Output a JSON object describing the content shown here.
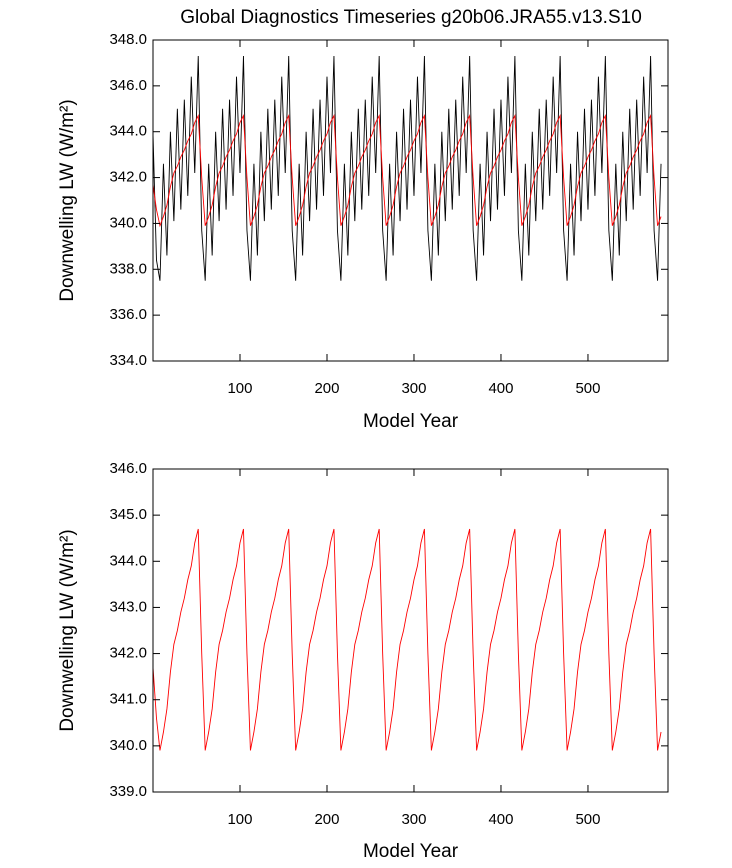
{
  "chart_data": [
    {
      "type": "line",
      "title": "Global Diagnostics Timeseries g20b06.JRA55.v13.S10",
      "x_label": "Model Year",
      "y_label": "Downwelling LW (W/m²)",
      "x": [
        0,
        4,
        8,
        12,
        16,
        20,
        24,
        28,
        32,
        36,
        40,
        44,
        48,
        52,
        56,
        60,
        64,
        68,
        72,
        76,
        80,
        84,
        88,
        92,
        96,
        100,
        104,
        108,
        112,
        116,
        120,
        124,
        128,
        132,
        136,
        140,
        144,
        148,
        152,
        156,
        160,
        164,
        168,
        172,
        176,
        180,
        184,
        188,
        192,
        196,
        200,
        204,
        208,
        212,
        216,
        220,
        224,
        228,
        232,
        236,
        240,
        244,
        248,
        252,
        256,
        260,
        264,
        268,
        272,
        276,
        280,
        284,
        288,
        292,
        296,
        300,
        304,
        308,
        312,
        316,
        320,
        324,
        328,
        332,
        336,
        340,
        344,
        348,
        352,
        356,
        360,
        364,
        368,
        372,
        376,
        380,
        384,
        388,
        392,
        396,
        400,
        404,
        408,
        412,
        416,
        420,
        424,
        428,
        432,
        436,
        440,
        444,
        448,
        452,
        456,
        460,
        464,
        468,
        472,
        476,
        480,
        484,
        488,
        492,
        496,
        500,
        504,
        508,
        512,
        516,
        520,
        524,
        528,
        532,
        536,
        540,
        544,
        548,
        552,
        556,
        560,
        564,
        568,
        572,
        576,
        580,
        584
      ],
      "series": [
        {
          "color": "#000000",
          "values": [
            343.9,
            338.4,
            337.5,
            342.6,
            338.6,
            344.0,
            340.1,
            345.0,
            340.6,
            345.4,
            341.2,
            346.4,
            342.2,
            347.3,
            339.7,
            337.5,
            342.6,
            338.6,
            344.0,
            340.1,
            345.0,
            340.6,
            345.4,
            341.2,
            346.4,
            342.2,
            347.3,
            339.7,
            337.5,
            342.6,
            338.6,
            344.0,
            340.1,
            345.0,
            340.6,
            345.4,
            341.2,
            346.4,
            342.2,
            347.3,
            339.7,
            337.5,
            342.6,
            338.6,
            344.0,
            340.1,
            345.0,
            340.6,
            345.4,
            341.2,
            346.4,
            342.2,
            347.3,
            339.7,
            337.5,
            342.6,
            338.6,
            344.0,
            340.1,
            345.0,
            340.6,
            345.4,
            341.2,
            346.4,
            342.2,
            347.3,
            339.7,
            337.5,
            342.6,
            338.6,
            344.0,
            340.1,
            345.0,
            340.6,
            345.4,
            341.2,
            346.4,
            342.2,
            347.3,
            339.7,
            337.5,
            342.6,
            338.6,
            344.0,
            340.1,
            345.0,
            340.6,
            345.4,
            341.2,
            346.4,
            342.2,
            347.3,
            339.7,
            337.5,
            342.6,
            338.6,
            344.0,
            340.1,
            345.0,
            340.6,
            345.4,
            341.2,
            346.4,
            342.2,
            347.3,
            339.7,
            337.5,
            342.6,
            338.6,
            344.0,
            340.1,
            345.0,
            340.6,
            345.4,
            341.2,
            346.4,
            342.2,
            347.3,
            339.7,
            337.5,
            342.6,
            338.6,
            344.0,
            340.1,
            345.0,
            340.6,
            345.4,
            341.2,
            346.4,
            342.2,
            347.3,
            339.7,
            337.5,
            342.6,
            338.6,
            344.0,
            340.1,
            345.0,
            340.6,
            345.4,
            341.2,
            346.4,
            342.2,
            347.3,
            339.7,
            337.5,
            342.6
          ]
        },
        {
          "color": "#ff0000",
          "values": [
            341.7,
            340.6,
            339.9,
            340.3,
            340.8,
            341.6,
            342.2,
            342.5,
            342.9,
            343.2,
            343.6,
            343.9,
            344.4,
            344.7,
            342.0,
            339.9,
            340.3,
            340.8,
            341.6,
            342.2,
            342.5,
            342.9,
            343.2,
            343.6,
            343.9,
            344.4,
            344.7,
            342.0,
            339.9,
            340.3,
            340.8,
            341.6,
            342.2,
            342.5,
            342.9,
            343.2,
            343.6,
            343.9,
            344.4,
            344.7,
            342.0,
            339.9,
            340.3,
            340.8,
            341.6,
            342.2,
            342.5,
            342.9,
            343.2,
            343.6,
            343.9,
            344.4,
            344.7,
            342.0,
            339.9,
            340.3,
            340.8,
            341.6,
            342.2,
            342.5,
            342.9,
            343.2,
            343.6,
            343.9,
            344.4,
            344.7,
            342.0,
            339.9,
            340.3,
            340.8,
            341.6,
            342.2,
            342.5,
            342.9,
            343.2,
            343.6,
            343.9,
            344.4,
            344.7,
            342.0,
            339.9,
            340.3,
            340.8,
            341.6,
            342.2,
            342.5,
            342.9,
            343.2,
            343.6,
            343.9,
            344.4,
            344.7,
            342.0,
            339.9,
            340.3,
            340.8,
            341.6,
            342.2,
            342.5,
            342.9,
            343.2,
            343.6,
            343.9,
            344.4,
            344.7,
            342.0,
            339.9,
            340.3,
            340.8,
            341.6,
            342.2,
            342.5,
            342.9,
            343.2,
            343.6,
            343.9,
            344.4,
            344.7,
            342.0,
            339.9,
            340.3,
            340.8,
            341.6,
            342.2,
            342.5,
            342.9,
            343.2,
            343.6,
            343.9,
            344.4,
            344.7,
            342.0,
            339.9,
            340.3,
            340.8,
            341.6,
            342.2,
            342.5,
            342.9,
            343.2,
            343.6,
            343.9,
            344.4,
            344.7,
            342.0,
            339.9,
            340.3
          ]
        }
      ],
      "xlim": [
        0,
        592
      ],
      "xticks": [
        100,
        200,
        300,
        400,
        500
      ],
      "ylim": [
        334,
        348
      ],
      "yticks": [
        {
          "value": 334,
          "label": "334.0"
        },
        {
          "value": 336,
          "label": "336.0"
        },
        {
          "value": 338,
          "label": "338.0"
        },
        {
          "value": 340,
          "label": "340.0"
        },
        {
          "value": 342,
          "label": "342.0"
        },
        {
          "value": 344,
          "label": "344.0"
        },
        {
          "value": 346,
          "label": "346.0"
        },
        {
          "value": 348,
          "label": "348.0"
        }
      ]
    },
    {
      "type": "line",
      "x_label": "Model Year",
      "y_label": "Downwelling LW (W/m²)",
      "x": [
        0,
        4,
        8,
        12,
        16,
        20,
        24,
        28,
        32,
        36,
        40,
        44,
        48,
        52,
        56,
        60,
        64,
        68,
        72,
        76,
        80,
        84,
        88,
        92,
        96,
        100,
        104,
        108,
        112,
        116,
        120,
        124,
        128,
        132,
        136,
        140,
        144,
        148,
        152,
        156,
        160,
        164,
        168,
        172,
        176,
        180,
        184,
        188,
        192,
        196,
        200,
        204,
        208,
        212,
        216,
        220,
        224,
        228,
        232,
        236,
        240,
        244,
        248,
        252,
        256,
        260,
        264,
        268,
        272,
        276,
        280,
        284,
        288,
        292,
        296,
        300,
        304,
        308,
        312,
        316,
        320,
        324,
        328,
        332,
        336,
        340,
        344,
        348,
        352,
        356,
        360,
        364,
        368,
        372,
        376,
        380,
        384,
        388,
        392,
        396,
        400,
        404,
        408,
        412,
        416,
        420,
        424,
        428,
        432,
        436,
        440,
        444,
        448,
        452,
        456,
        460,
        464,
        468,
        472,
        476,
        480,
        484,
        488,
        492,
        496,
        500,
        504,
        508,
        512,
        516,
        520,
        524,
        528,
        532,
        536,
        540,
        544,
        548,
        552,
        556,
        560,
        564,
        568,
        572,
        576,
        580,
        584
      ],
      "series": [
        {
          "color": "#ff0000",
          "values": [
            341.7,
            340.6,
            339.9,
            340.3,
            340.8,
            341.6,
            342.2,
            342.5,
            342.9,
            343.2,
            343.6,
            343.9,
            344.4,
            344.7,
            342.0,
            339.9,
            340.3,
            340.8,
            341.6,
            342.2,
            342.5,
            342.9,
            343.2,
            343.6,
            343.9,
            344.4,
            344.7,
            342.0,
            339.9,
            340.3,
            340.8,
            341.6,
            342.2,
            342.5,
            342.9,
            343.2,
            343.6,
            343.9,
            344.4,
            344.7,
            342.0,
            339.9,
            340.3,
            340.8,
            341.6,
            342.2,
            342.5,
            342.9,
            343.2,
            343.6,
            343.9,
            344.4,
            344.7,
            342.0,
            339.9,
            340.3,
            340.8,
            341.6,
            342.2,
            342.5,
            342.9,
            343.2,
            343.6,
            343.9,
            344.4,
            344.7,
            342.0,
            339.9,
            340.3,
            340.8,
            341.6,
            342.2,
            342.5,
            342.9,
            343.2,
            343.6,
            343.9,
            344.4,
            344.7,
            342.0,
            339.9,
            340.3,
            340.8,
            341.6,
            342.2,
            342.5,
            342.9,
            343.2,
            343.6,
            343.9,
            344.4,
            344.7,
            342.0,
            339.9,
            340.3,
            340.8,
            341.6,
            342.2,
            342.5,
            342.9,
            343.2,
            343.6,
            343.9,
            344.4,
            344.7,
            342.0,
            339.9,
            340.3,
            340.8,
            341.6,
            342.2,
            342.5,
            342.9,
            343.2,
            343.6,
            343.9,
            344.4,
            344.7,
            342.0,
            339.9,
            340.3,
            340.8,
            341.6,
            342.2,
            342.5,
            342.9,
            343.2,
            343.6,
            343.9,
            344.4,
            344.7,
            342.0,
            339.9,
            340.3,
            340.8,
            341.6,
            342.2,
            342.5,
            342.9,
            343.2,
            343.6,
            343.9,
            344.4,
            344.7,
            342.0,
            339.9,
            340.3
          ]
        }
      ],
      "xlim": [
        0,
        592
      ],
      "xticks": [
        100,
        200,
        300,
        400,
        500
      ],
      "ylim": [
        339,
        346
      ],
      "yticks": [
        {
          "value": 339,
          "label": "339.0"
        },
        {
          "value": 340,
          "label": "340.0"
        },
        {
          "value": 341,
          "label": "341.0"
        },
        {
          "value": 342,
          "label": "342.0"
        },
        {
          "value": 343,
          "label": "343.0"
        },
        {
          "value": 344,
          "label": "344.0"
        },
        {
          "value": 345,
          "label": "345.0"
        },
        {
          "value": 346,
          "label": "346.0"
        }
      ]
    }
  ]
}
